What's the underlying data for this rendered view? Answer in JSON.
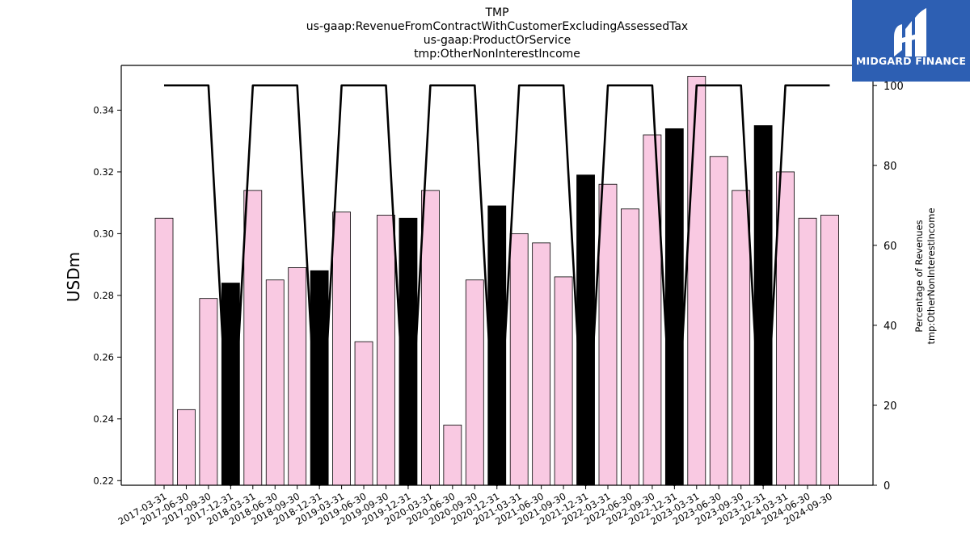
{
  "title_lines": [
    "TMP",
    "us-gaap:RevenueFromContractWithCustomerExcludingAssessedTax",
    "us-gaap:ProductOrService",
    "tmp:OtherNonInterestIncome"
  ],
  "logo": {
    "text": "MIDGARD FINANCE",
    "background": "#2d5fb3"
  },
  "chart_data": {
    "type": "bar",
    "ylabel": "USDm",
    "y2label_lines": [
      "Percentage of Revenues",
      "tmp:OtherNonInterestIncome"
    ],
    "ylim": [
      0.2185,
      0.3545
    ],
    "y2lim": [
      0,
      105
    ],
    "yticks": [
      "0.22",
      "0.24",
      "0.26",
      "0.28",
      "0.30",
      "0.32",
      "0.34"
    ],
    "y2ticks": [
      "0",
      "20",
      "40",
      "60",
      "80",
      "100"
    ],
    "categories": [
      "2017-03-31",
      "2017-06-30",
      "2017-09-30",
      "2017-12-31",
      "2018-03-31",
      "2018-06-30",
      "2018-09-30",
      "2018-12-31",
      "2019-03-31",
      "2019-06-30",
      "2019-09-30",
      "2019-12-31",
      "2020-03-31",
      "2020-06-30",
      "2020-09-30",
      "2020-12-31",
      "2021-03-31",
      "2021-06-30",
      "2021-09-30",
      "2021-12-31",
      "2022-03-31",
      "2022-06-30",
      "2022-09-30",
      "2022-12-31",
      "2023-03-31",
      "2023-06-30",
      "2023-09-30",
      "2023-12-31",
      "2024-03-31",
      "2024-06-30",
      "2024-09-30"
    ],
    "values": [
      0.305,
      0.243,
      0.279,
      0.284,
      0.314,
      0.285,
      0.289,
      0.288,
      0.307,
      0.265,
      0.306,
      0.305,
      0.314,
      0.238,
      0.285,
      0.309,
      0.3,
      0.297,
      0.286,
      0.319,
      0.316,
      0.308,
      0.332,
      0.334,
      0.351,
      0.325,
      0.314,
      0.335,
      0.32,
      0.305,
      0.306
    ],
    "highlight": [
      false,
      false,
      false,
      true,
      false,
      false,
      false,
      true,
      false,
      false,
      false,
      true,
      false,
      false,
      false,
      true,
      false,
      false,
      false,
      true,
      false,
      false,
      false,
      true,
      false,
      false,
      false,
      true,
      false,
      false,
      false
    ],
    "percentage_line": [
      100,
      100,
      100,
      0,
      100,
      100,
      100,
      0,
      100,
      100,
      100,
      0,
      100,
      100,
      100,
      0,
      100,
      100,
      100,
      0,
      100,
      100,
      100,
      0,
      100,
      100,
      100,
      0,
      100,
      100,
      100
    ],
    "colors": {
      "bar": "#f9c9e2",
      "bar_highlight": "#000000",
      "line": "#000000"
    }
  }
}
